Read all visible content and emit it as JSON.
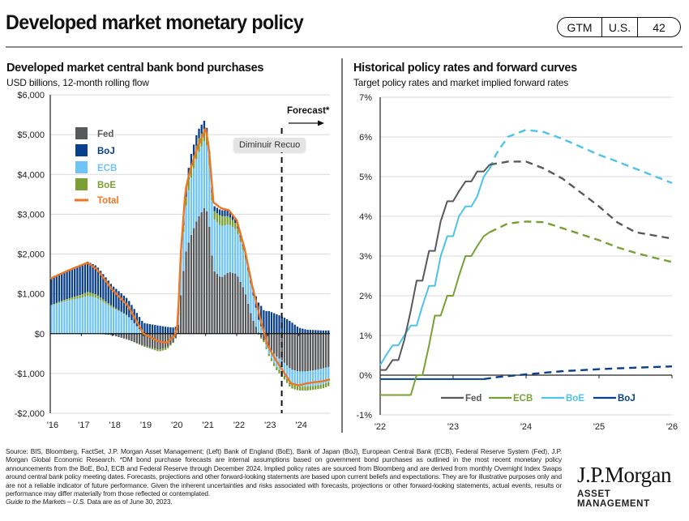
{
  "header": {
    "title": "Developed market monetary policy",
    "badge": {
      "section": "GTM",
      "region": "U.S.",
      "page": "42"
    }
  },
  "left_panel": {
    "title": "Developed market central bank bond purchases",
    "subtitle": "USD billions, 12-month rolling flow",
    "forecast_label": "Forecast*",
    "tooltip": "Diminuir Recuo"
  },
  "right_panel": {
    "title": "Historical policy rates and forward curves",
    "subtitle": "Target policy rates and market implied forward rates"
  },
  "colors": {
    "fed": "#58595b",
    "boj": "#0a3f8a",
    "ecb": "#70c4f5",
    "boe": "#7a9f35",
    "total": "#ee7521",
    "boe_rate": "#4dc3ec",
    "grid": "#d9d9d9"
  },
  "chart_data": [
    {
      "type": "bar",
      "stacked": true,
      "title": "Developed market central bank bond purchases",
      "subtitle": "USD billions, 12-month rolling flow",
      "xlabel": "",
      "ylabel": "",
      "x_tick_labels": [
        "'16",
        "'17",
        "'18",
        "'19",
        "'20",
        "'21",
        "'22",
        "'23",
        "'24"
      ],
      "x_range": [
        2016,
        2025
      ],
      "ylim": [
        -2000,
        6000
      ],
      "y_ticks": [
        6000,
        5000,
        4000,
        3000,
        2000,
        1000,
        0,
        -1000,
        -2000
      ],
      "y_tick_labels": [
        "$6,000",
        "$5,000",
        "$4,000",
        "$3,000",
        "$2,000",
        "$1,000",
        "$0",
        "-$1,000",
        "-$2,000"
      ],
      "grid": true,
      "legend": "top-left",
      "forecast_start": 2023.45,
      "annotation": "Forecast*",
      "x": [
        2016.0,
        2016.5,
        2017.0,
        2017.2,
        2017.5,
        2018.0,
        2018.5,
        2019.0,
        2019.5,
        2019.75,
        2020.0,
        2020.1,
        2020.2,
        2020.35,
        2020.5,
        2020.75,
        2021.0,
        2021.1,
        2021.25,
        2021.5,
        2021.75,
        2022.0,
        2022.25,
        2022.5,
        2022.75,
        2023.0,
        2023.25,
        2023.5,
        2023.75,
        2024.0,
        2024.25,
        2024.5,
        2024.75,
        2025.0
      ],
      "series": [
        {
          "name": "Fed",
          "values": [
            0,
            0,
            0,
            0,
            0,
            -40,
            -150,
            -300,
            -400,
            -350,
            -200,
            0,
            900,
            2000,
            2400,
            2900,
            3200,
            2900,
            1600,
            1400,
            1550,
            1500,
            1100,
            400,
            -50,
            -300,
            -550,
            -700,
            -900,
            -950,
            -950,
            -920,
            -880,
            -830
          ]
        },
        {
          "name": "BoJ",
          "values": [
            650,
            700,
            740,
            760,
            720,
            520,
            420,
            270,
            200,
            170,
            150,
            150,
            200,
            250,
            300,
            250,
            200,
            150,
            120,
            150,
            150,
            130,
            100,
            80,
            500,
            580,
            500,
            420,
            300,
            150,
            100,
            90,
            80,
            80
          ]
        },
        {
          "name": "ECB",
          "values": [
            700,
            820,
            900,
            950,
            900,
            650,
            450,
            0,
            0,
            0,
            0,
            50,
            800,
            1100,
            1400,
            1600,
            1700,
            1600,
            1300,
            1300,
            1200,
            1100,
            900,
            700,
            250,
            -150,
            -250,
            -320,
            -370,
            -380,
            -380,
            -390,
            -400,
            -380
          ]
        },
        {
          "name": "BoE",
          "values": [
            10,
            40,
            80,
            100,
            80,
            40,
            0,
            -20,
            -50,
            -50,
            0,
            0,
            100,
            200,
            300,
            350,
            300,
            200,
            200,
            250,
            200,
            150,
            80,
            20,
            -30,
            -50,
            -80,
            -90,
            -100,
            -100,
            -100,
            -100,
            -100,
            -100
          ]
        },
        {
          "name": "Total",
          "values": [
            1380,
            1560,
            1720,
            1780,
            1620,
            1100,
            700,
            0,
            -200,
            -230,
            -50,
            200,
            2000,
            3600,
            4100,
            4700,
            5150,
            4700,
            3300,
            3150,
            3100,
            2850,
            2150,
            1200,
            400,
            -300,
            -650,
            -950,
            -1250,
            -1300,
            -1250,
            -1220,
            -1200,
            -1150
          ]
        }
      ]
    },
    {
      "type": "line",
      "title": "Historical policy rates and forward curves",
      "subtitle": "Target policy rates and market implied forward rates",
      "xlabel": "",
      "ylabel": "",
      "x_tick_labels": [
        "'22",
        "'23",
        "'24",
        "'25",
        "'26"
      ],
      "x_range": [
        2022,
        2026
      ],
      "ylim": [
        -1,
        7
      ],
      "y_ticks": [
        7,
        6,
        5,
        4,
        3,
        2,
        1,
        0,
        -1
      ],
      "y_tick_labels": [
        "7%",
        "6%",
        "5%",
        "4%",
        "3%",
        "2%",
        "1%",
        "0%",
        "-1%"
      ],
      "grid": true,
      "legend": "bottom-center",
      "forecast_start": 2023.5,
      "series": [
        {
          "name": "Fed",
          "historical": {
            "x": [
              2022.0,
              2022.08,
              2022.17,
              2022.25,
              2022.33,
              2022.42,
              2022.5,
              2022.58,
              2022.67,
              2022.75,
              2022.83,
              2022.92,
              2023.0,
              2023.08,
              2023.17,
              2023.25,
              2023.33,
              2023.42,
              2023.5
            ],
            "y": [
              0.13,
              0.13,
              0.38,
              0.38,
              0.88,
              1.63,
              2.38,
              2.38,
              3.13,
              3.13,
              3.88,
              4.38,
              4.38,
              4.63,
              4.88,
              4.88,
              5.13,
              5.13,
              5.3
            ]
          },
          "forecast": {
            "x": [
              2023.5,
              2023.75,
              2024.0,
              2024.25,
              2024.5,
              2024.75,
              2025.0,
              2025.25,
              2025.5,
              2025.75,
              2026.0
            ],
            "y": [
              5.3,
              5.38,
              5.38,
              5.2,
              4.95,
              4.6,
              4.25,
              3.85,
              3.6,
              3.52,
              3.44
            ]
          }
        },
        {
          "name": "ECB",
          "historical": {
            "x": [
              2022.0,
              2022.25,
              2022.42,
              2022.5,
              2022.58,
              2022.67,
              2022.75,
              2022.83,
              2022.92,
              2023.0,
              2023.08,
              2023.17,
              2023.25,
              2023.33,
              2023.42,
              2023.5
            ],
            "y": [
              -0.5,
              -0.5,
              -0.5,
              0.0,
              0.0,
              0.75,
              1.5,
              1.5,
              2.0,
              2.0,
              2.5,
              3.0,
              3.0,
              3.25,
              3.5,
              3.6
            ]
          },
          "forecast": {
            "x": [
              2023.5,
              2023.75,
              2024.0,
              2024.25,
              2024.5,
              2024.75,
              2025.0,
              2025.25,
              2025.5,
              2025.75,
              2026.0
            ],
            "y": [
              3.6,
              3.82,
              3.87,
              3.85,
              3.7,
              3.55,
              3.4,
              3.22,
              3.08,
              2.96,
              2.85
            ]
          }
        },
        {
          "name": "BoE",
          "historical": {
            "x": [
              2022.0,
              2022.08,
              2022.17,
              2022.25,
              2022.33,
              2022.42,
              2022.5,
              2022.58,
              2022.67,
              2022.75,
              2022.83,
              2022.92,
              2023.0,
              2023.08,
              2023.17,
              2023.25,
              2023.33,
              2023.42,
              2023.5
            ],
            "y": [
              0.25,
              0.5,
              0.75,
              0.75,
              1.0,
              1.25,
              1.25,
              1.75,
              2.25,
              2.25,
              3.0,
              3.5,
              3.5,
              4.0,
              4.25,
              4.25,
              4.5,
              5.0,
              5.2
            ]
          },
          "forecast": {
            "x": [
              2023.5,
              2023.6,
              2023.75,
              2024.0,
              2024.25,
              2024.5,
              2024.75,
              2025.0,
              2025.25,
              2025.5,
              2025.75,
              2026.0
            ],
            "y": [
              5.2,
              5.6,
              6.0,
              6.18,
              6.12,
              5.95,
              5.75,
              5.55,
              5.38,
              5.2,
              5.02,
              4.84
            ]
          }
        },
        {
          "name": "BoJ",
          "historical": {
            "x": [
              2022.0,
              2023.42
            ],
            "y": [
              -0.1,
              -0.1
            ]
          },
          "forecast": {
            "x": [
              2023.42,
              2023.6,
              2024.0,
              2024.5,
              2025.0,
              2025.5,
              2026.0
            ],
            "y": [
              -0.1,
              -0.05,
              0.02,
              0.1,
              0.15,
              0.19,
              0.22
            ]
          }
        }
      ]
    }
  ],
  "footnote": {
    "text": "Source: BIS, Bloomberg, FactSet, J.P. Morgan Asset Management; (Left) Bank of England (BoE), Bank of Japan (BoJ), European Central Bank (ECB), Federal Reserve System (Fed), J.P. Morgan Global Economic Research. *DM bond purchase forecasts are internal assumptions based on government bond purchases as outlined in the most recent monetary policy announcements from the BoE, BoJ, ECB and Federal Reserve through December 2024. Implied policy rates are sourced from Bloomberg and are derived from monthly Overnight Index Swaps around central bank policy meeting dates. Forecasts, projections and other forward-looking statements are based upon current beliefs and expectations. They are for illustrative purposes only and are not a reliable indicator of future performance. Given the inherent uncertainties and risks associated with forecasts, projections or other forward-looking statements, actual events, results or performance may differ materially from those reflected or contemplated.",
    "guide_title": "Guide to the Markets – U.S.",
    "guide_date": " Data are as of June 30, 2023."
  },
  "logo": {
    "name": "J.P.Morgan",
    "tagline": "ASSET MANAGEMENT"
  }
}
